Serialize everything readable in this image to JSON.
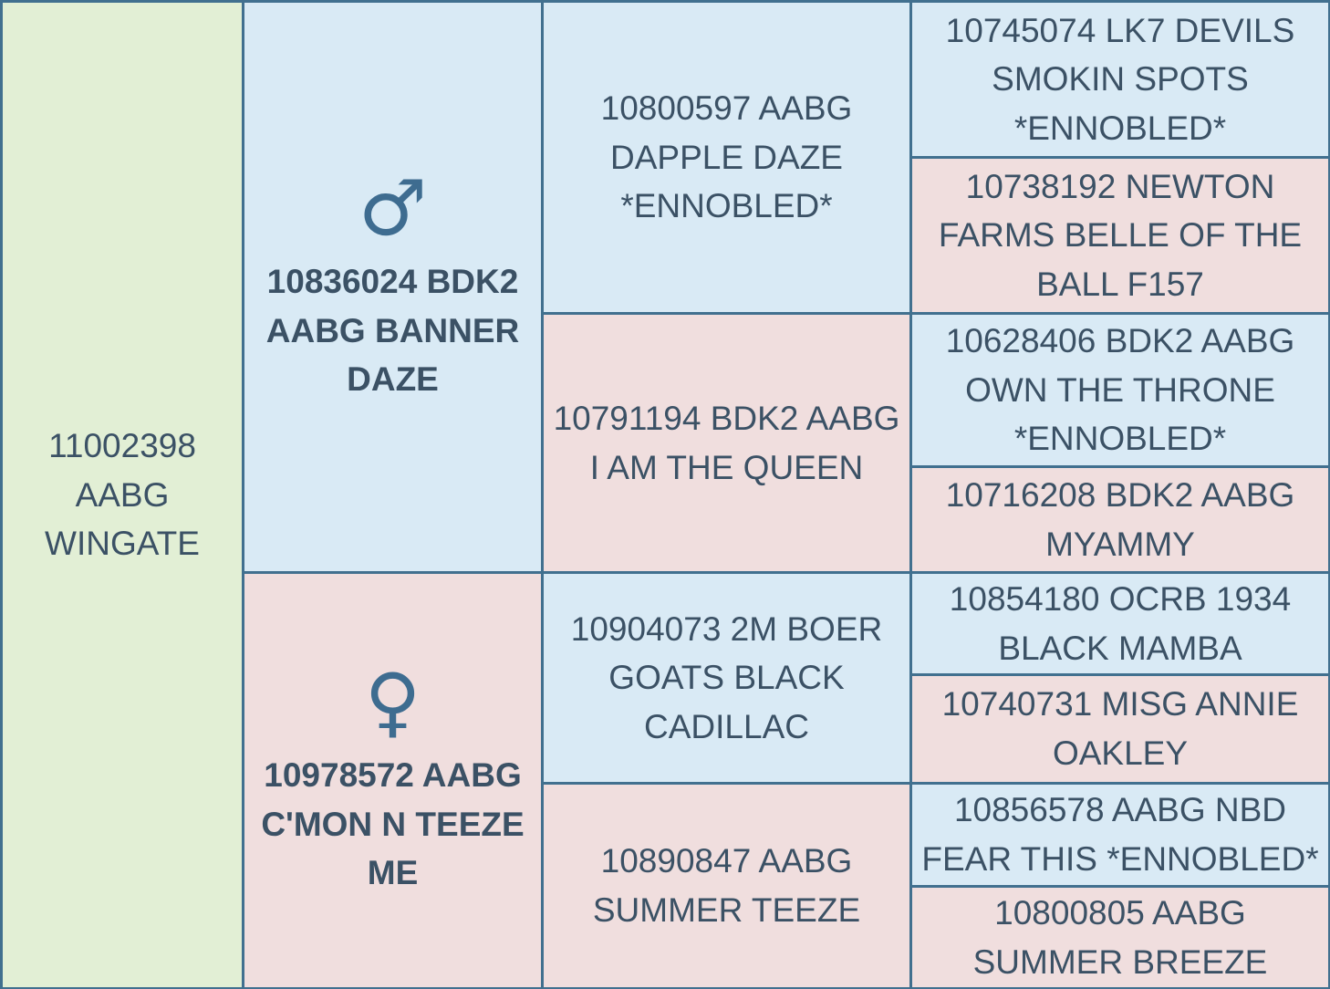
{
  "colors": {
    "border": "#41708f",
    "text": "#3b5165",
    "symbol": "#3e6c90",
    "subject_bg": "#e2efd5",
    "male_bg": "#d9eaf5",
    "female_bg": "#f0dede"
  },
  "icons": {
    "male": "♂",
    "female": "♀"
  },
  "pedigree": {
    "subject": {
      "label": "11002398 AABG WINGATE"
    },
    "sire": {
      "label": "10836024 BDK2 AABG BANNER DAZE",
      "sire": {
        "label": "10800597 AABG DAPPLE DAZE *ENNOBLED*",
        "sire": {
          "label": "10745074 LK7 DEVILS SMOKIN SPOTS *ENNOBLED*"
        },
        "dam": {
          "label": "10738192 NEWTON FARMS BELLE OF THE BALL F157"
        }
      },
      "dam": {
        "label": "10791194 BDK2 AABG I AM THE QUEEN",
        "sire": {
          "label": "10628406 BDK2 AABG OWN THE THRONE *ENNOBLED*"
        },
        "dam": {
          "label": "10716208 BDK2 AABG MYAMMY"
        }
      }
    },
    "dam": {
      "label": "10978572 AABG C'MON N TEEZE ME",
      "sire": {
        "label": "10904073 2M BOER GOATS BLACK CADILLAC",
        "sire": {
          "label": "10854180 OCRB 1934 BLACK MAMBA"
        },
        "dam": {
          "label": "10740731 MISG ANNIE OAKLEY"
        }
      },
      "dam": {
        "label": "10890847 AABG SUMMER TEEZE",
        "sire": {
          "label": "10856578 AABG NBD FEAR THIS *ENNOBLED*"
        },
        "dam": {
          "label": "10800805 AABG SUMMER BREEZE"
        }
      }
    }
  }
}
